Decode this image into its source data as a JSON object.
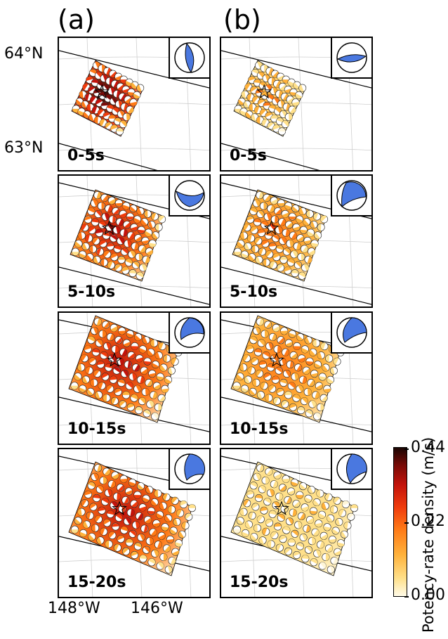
{
  "columns": [
    {
      "label": "(a)"
    },
    {
      "label": "(b)"
    }
  ],
  "axes": {
    "lat": [
      "64°N",
      "63°N"
    ],
    "lon": [
      "148°W",
      "146°W"
    ]
  },
  "time_windows": [
    "0-5s",
    "5-10s",
    "10-15s",
    "15-20s"
  ],
  "colorbar": {
    "title": "Potency-rate density (m/s)",
    "ticks": [
      "0.44",
      "0.22",
      "0.00"
    ],
    "min": 0.0,
    "max": 0.44
  },
  "colors": {
    "beachball_fill": "#4a78e0",
    "high": "#7a0b07",
    "low": "#fff6d8"
  }
}
